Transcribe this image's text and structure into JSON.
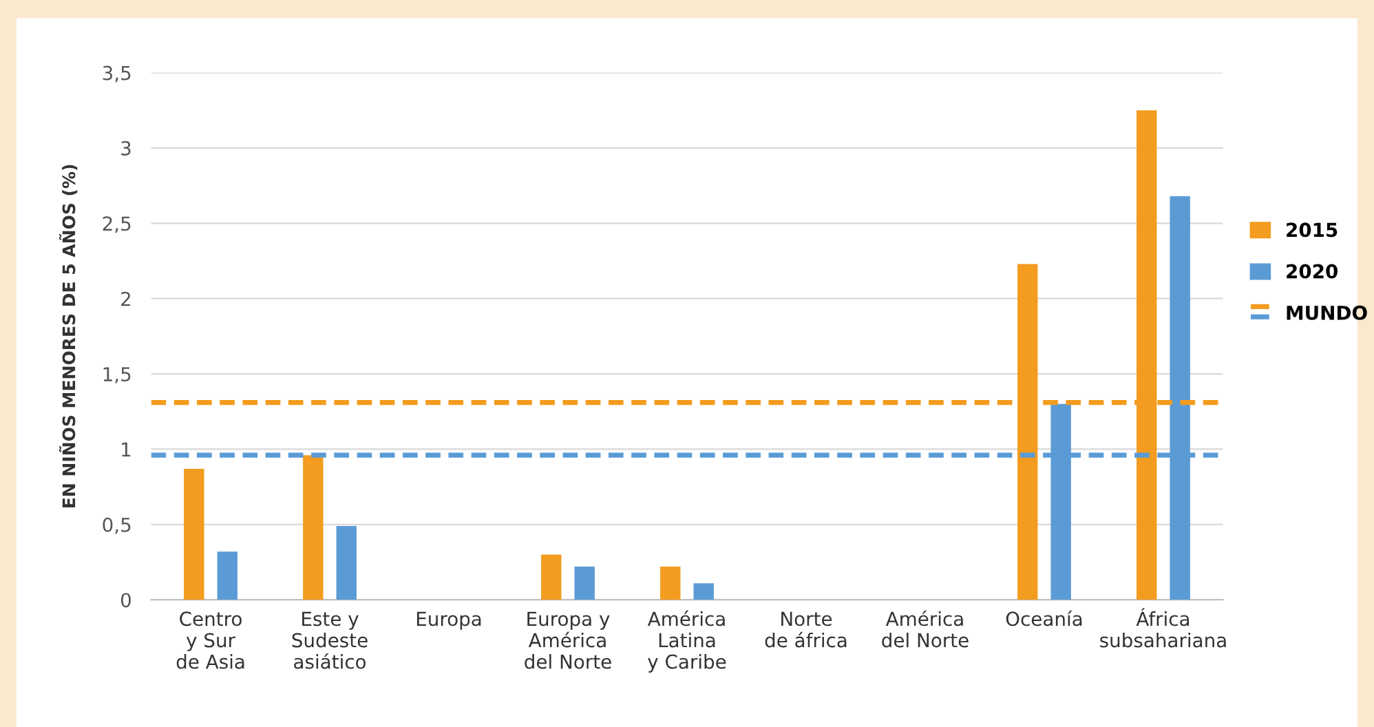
{
  "chart_data": {
    "type": "bar",
    "ylabel": "EN NIÑOS MENORES DE 5 AÑOS (%)",
    "categories": [
      "Centro\ny Sur\nde Asia",
      "Este y\nSudeste\nasiático",
      "Europa",
      "Europa y\nAmérica\ndel Norte",
      "América\nLatina\ny Caribe",
      "Norte\nde áfrica",
      "América\ndel Norte",
      "Oceanía",
      "África\nsubsahariana"
    ],
    "series": [
      {
        "name": "2015",
        "color": "#f39c1f",
        "values": [
          0.87,
          0.96,
          null,
          0.3,
          0.22,
          null,
          null,
          2.23,
          3.25
        ]
      },
      {
        "name": "2020",
        "color": "#5b9bd5",
        "values": [
          0.32,
          0.49,
          null,
          0.22,
          0.11,
          null,
          null,
          1.3,
          2.68
        ]
      }
    ],
    "ref_lines": [
      {
        "axis": "y",
        "value": 1.31,
        "label": "MUNDO",
        "color": "#f39c1f",
        "line_style": "dashed"
      },
      {
        "axis": "y",
        "value": 0.96,
        "label": null,
        "color": "#5b9bd5",
        "line_style": "dashed"
      }
    ],
    "ylim": [
      0,
      3.5
    ],
    "yticks": [
      0,
      {
        "value": 0.5,
        "label": "0,5"
      },
      1,
      {
        "value": 1.5,
        "label": "1,5"
      },
      2,
      {
        "value": 2.5,
        "label": "2,5"
      },
      3,
      {
        "value": 3.5,
        "label": "3,5"
      }
    ],
    "grid": "y",
    "legend": "right"
  }
}
